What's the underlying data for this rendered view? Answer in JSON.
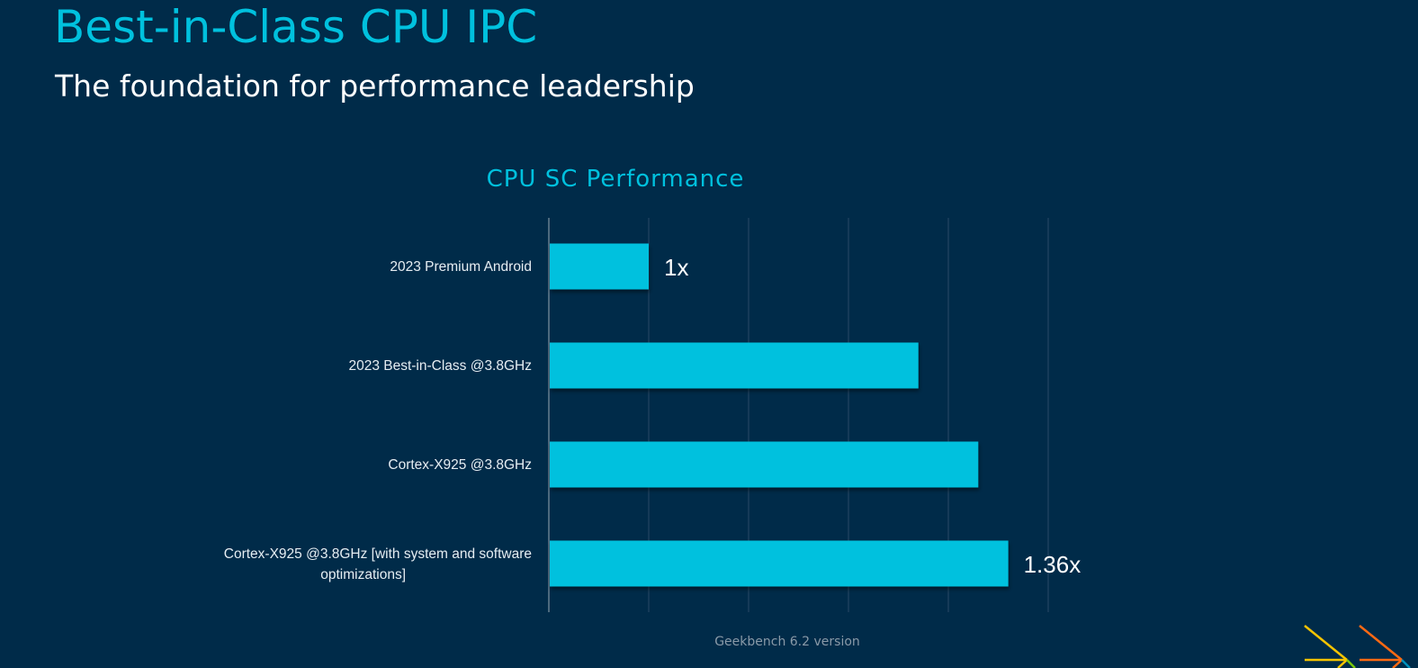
{
  "slide": {
    "title": "Best-in-Class CPU IPC",
    "subtitle": "The foundation for performance leadership",
    "footnote": "Geekbench 6.2 version"
  },
  "colors": {
    "background": "#002b49",
    "accent": "#00c1de",
    "bar": "#00c1de",
    "text": "#ffffff"
  },
  "chart_data": {
    "type": "bar",
    "orientation": "horizontal",
    "title": "CPU SC Performance",
    "categories": [
      "2023 Premium Android",
      "2023 Best-in-Class @3.8GHz",
      "Cortex-X925 @3.8GHz",
      "Cortex-X925 @3.8GHz [with system and software optimizations]"
    ],
    "values": [
      1.0,
      1.27,
      1.33,
      1.36
    ],
    "data_labels": [
      "1x",
      null,
      null,
      "1.36x"
    ],
    "xlim": [
      0.9,
      1.4
    ],
    "xticks": [
      0.9,
      1.0,
      1.1,
      1.2,
      1.3,
      1.4
    ],
    "tick_labels_visible": false,
    "grid": true,
    "legend": "none",
    "xlabel": "",
    "ylabel": ""
  }
}
